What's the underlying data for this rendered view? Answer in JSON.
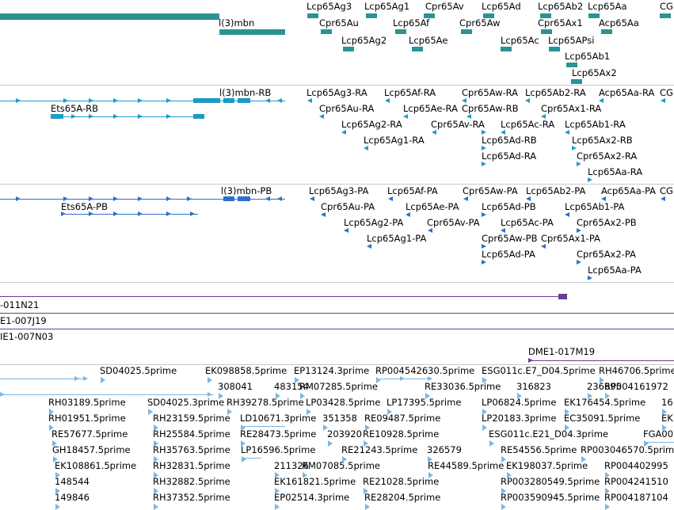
{
  "colors": {
    "gene": "#2b9393",
    "transcript_rb": "#1b9cc8",
    "transcript_pb": "#2e6fc9",
    "bac": "#6a3d96",
    "est": "#7fb6df",
    "divider": "#c8c8c8"
  },
  "tracks": {
    "genes": {
      "labels": [
        "Lcp65Ag3",
        "Lcp65Ag1",
        "Cpr65Av",
        "Lcp65Ad",
        "Lcp65Ab2",
        "Lcp65Aa",
        "CG",
        "l(3)mbn",
        "Cpr65Au",
        "Lcp65Af",
        "Cpr65Aw",
        "Cpr65Ax1",
        "Acp65Aa",
        "Lcp65Ag2",
        "Lcp65Ae",
        "Lcp65Ac",
        "Lcp65APsi",
        "Lcp65Ab1",
        "Lcp65Ax2"
      ]
    },
    "rb": {
      "labels": [
        "l(3)mbn-RB",
        "Lcp65Ag3-RA",
        "Lcp65Af-RA",
        "Cpr65Aw-RA",
        "Lcp65Ab2-RA",
        "Acp65Aa-RA",
        "CG",
        "Ets65A-RB",
        "Cpr65Au-RA",
        "Lcp65Ae-RA",
        "Cpr65Aw-RB",
        "Cpr65Ax1-RA",
        "Lcp65Ag2-RA",
        "Cpr65Av-RA",
        "Lcp65Ac-RA",
        "Lcp65Ab1-RA",
        "Lcp65Ag1-RA",
        "Lcp65Ad-RB",
        "Lcp65Ax2-RB",
        "Lcp65Ad-RA",
        "Cpr65Ax2-RA",
        "Lcp65Aa-RA"
      ]
    },
    "pb": {
      "labels": [
        "l(3)mbn-PB",
        "Lcp65Ag3-PA",
        "Lcp65Af-PA",
        "Cpr65Aw-PA",
        "Lcp65Ab2-PA",
        "Acp65Aa-PA",
        "CG",
        "Ets65A-PB",
        "Cpr65Au-PA",
        "Lcp65Ae-PA",
        "Lcp65Ad-PB",
        "Lcp65Ab1-PA",
        "Lcp65Ag2-PA",
        "Cpr65Av-PA",
        "Lcp65Ac-PA",
        "Cpr65Ax2-PB",
        "Lcp65Ag1-PA",
        "Cpr65Aw-PB",
        "Cpr65Ax1-PA",
        "Lcp65Ad-PA",
        "Cpr65Ax2-PA",
        "Lcp65Aa-PA"
      ]
    },
    "bac": {
      "labels": [
        "-011N21",
        "E1-007J19",
        "IE1-007N03",
        "DME1-017M19"
      ]
    },
    "est": {
      "labels": [
        "SD04025.5prime",
        "EK098858.5prime",
        "EP13124.3prime",
        "RP004542630.5prime",
        "ESG011c.E7_D04.5prime",
        "RH46706.5prime",
        "308041",
        "483154",
        "RM07285.5prime",
        "RE33036.5prime",
        "316823",
        "236695",
        "RP004161972",
        "RH03189.5prime",
        "SD04025.3prime",
        "RH39278.5prime",
        "LP03428.5prime",
        "LP17395.5prime",
        "LP06824.5prime",
        "EK176454.5prime",
        "16",
        "RH01951.5prime",
        "RH23159.5prime",
        "LD10671.3prime",
        "351358",
        "RE09487.5prime",
        "LP20183.3prime",
        "EC35091.5prime",
        "EK",
        "RE57677.5prime",
        "RH25584.5prime",
        "RE28473.5prime",
        "203920",
        "RE10928.5prime",
        "ESG011c.E21_D04.3prime",
        "FGA00",
        "GH18457.5prime",
        "RH35763.5prime",
        "LP16596.5prime",
        "RE21243.5prime",
        "326579",
        "RE54556.5prime",
        "RP003046570.5prime",
        "EK108861.5prime",
        "RH32831.5prime",
        "211326",
        "RM07085.5prime",
        "RE44589.5prime",
        "EK198037.5prime",
        "RP004402995",
        "148544",
        "RH32882.5prime",
        "EK161821.5prime",
        "RE21028.5prime",
        "RP003280549.5prime",
        "RP004241510",
        "149846",
        "RH37352.5prime",
        "EP02514.3prime",
        "RE28204.5prime",
        "RP003590945.5prime",
        "RP004187104"
      ]
    }
  }
}
